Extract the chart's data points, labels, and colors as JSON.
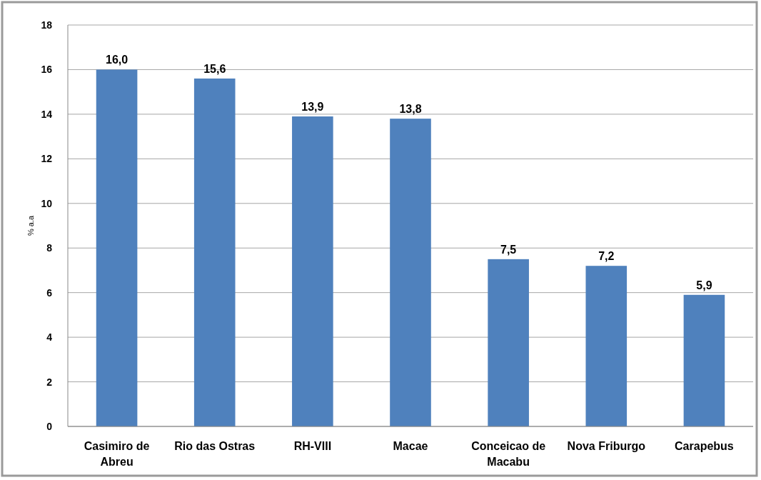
{
  "chart_data": {
    "type": "bar",
    "ylabel": "% a.a",
    "categories": [
      "Casimiro de Abreu",
      "Rio das Ostras",
      "RH-VIII",
      "Macae",
      "Conceicao de Macabu",
      "Nova Friburgo",
      "Carapebus"
    ],
    "values": [
      16.0,
      15.6,
      13.9,
      13.8,
      7.5,
      7.2,
      5.9
    ],
    "value_labels": [
      "16,0",
      "15,6",
      "13,9",
      "13,8",
      "7,5",
      "7,2",
      "5,9"
    ],
    "color": "#4f81bd",
    "ylim": [
      0,
      18
    ],
    "yticks": [
      0,
      2,
      4,
      6,
      8,
      10,
      12,
      14,
      16,
      18
    ],
    "grid": "y"
  }
}
